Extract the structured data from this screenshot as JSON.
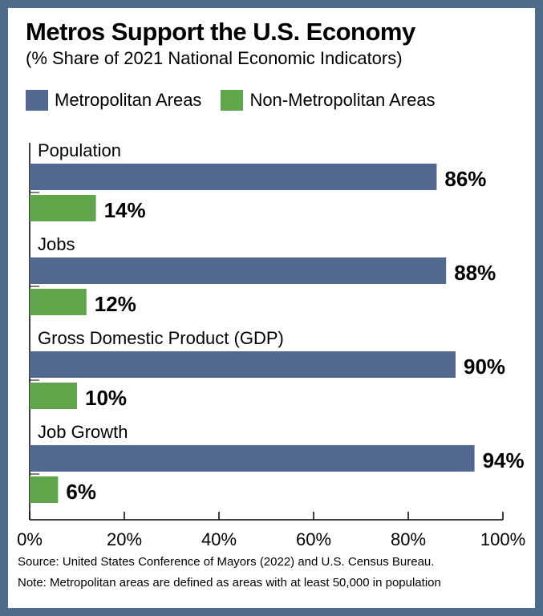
{
  "colors": {
    "background": "#4f6d8a",
    "metro": "#52688f",
    "nonmetro": "#5fa64a"
  },
  "chart_data": {
    "type": "bar",
    "orientation": "horizontal",
    "title": "Metros Support the U.S. Economy",
    "subtitle": "(% Share of 2021 National Economic Indicators)",
    "categories": [
      "Population",
      "Jobs",
      "Gross Domestic Product (GDP)",
      "Job Growth"
    ],
    "series": [
      {
        "name": "Metropolitan Areas",
        "values": [
          86,
          88,
          90,
          94
        ],
        "labels": [
          "86%",
          "88%",
          "90%",
          "94%"
        ]
      },
      {
        "name": "Non-Metropolitan Areas",
        "values": [
          14,
          12,
          10,
          6
        ],
        "labels": [
          "14%",
          "12%",
          "10%",
          "6%"
        ]
      }
    ],
    "xlim": [
      0,
      100
    ],
    "xticks": [
      0,
      20,
      40,
      60,
      80,
      100
    ],
    "xtick_labels": [
      "0%",
      "20%",
      "40%",
      "60%",
      "80%",
      "100%"
    ],
    "grid": false,
    "legend_position": "top-left"
  },
  "footer": {
    "source": "Source: United States Conference of Mayors (2022) and U.S. Census Bureau.",
    "note": "Note: Metropolitan areas are defined as areas with at least 50,000 in population"
  }
}
